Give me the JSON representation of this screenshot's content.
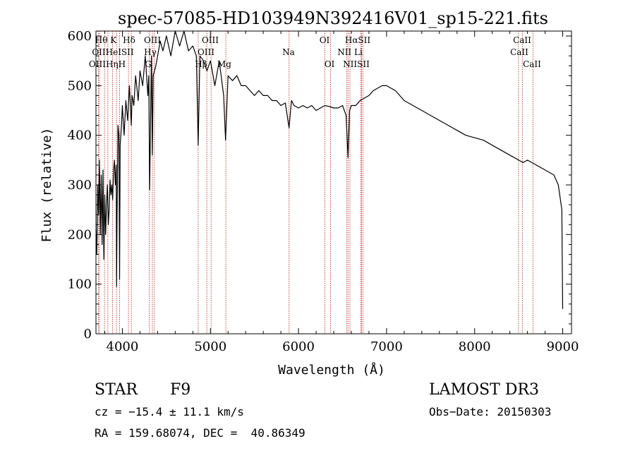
{
  "chart_data": {
    "type": "line",
    "title": "spec-57085-HD103949N392416V01_sp15-221.fits",
    "xlabel": "Wavelength (Å)",
    "ylabel": "Flux (relative)",
    "xlim": [
      3700,
      9100
    ],
    "ylim": [
      0,
      610
    ],
    "xticks": [
      4000,
      5000,
      6000,
      7000,
      8000,
      9000
    ],
    "yticks": [
      0,
      100,
      200,
      300,
      400,
      500,
      600
    ],
    "x_tick_labels": [
      "4000",
      "5000",
      "6000",
      "7000",
      "8000",
      "9000"
    ],
    "y_tick_labels": [
      "0",
      "100",
      "200",
      "300",
      "400",
      "500",
      "600"
    ],
    "series": [
      {
        "name": "spectrum",
        "x": [
          3700,
          3710,
          3720,
          3730,
          3740,
          3750,
          3760,
          3770,
          3780,
          3790,
          3800,
          3810,
          3820,
          3830,
          3840,
          3850,
          3860,
          3870,
          3880,
          3890,
          3900,
          3910,
          3920,
          3930,
          3934,
          3940,
          3950,
          3960,
          3968,
          3975,
          3990,
          4000,
          4020,
          4040,
          4060,
          4080,
          4101,
          4110,
          4130,
          4150,
          4180,
          4200,
          4230,
          4260,
          4290,
          4300,
          4310,
          4330,
          4340,
          4350,
          4380,
          4400,
          4430,
          4460,
          4500,
          4550,
          4600,
          4650,
          4700,
          4750,
          4800,
          4840,
          4861,
          4880,
          4920,
          4960,
          5000,
          5050,
          5100,
          5150,
          5172,
          5200,
          5250,
          5300,
          5350,
          5400,
          5450,
          5500,
          5550,
          5600,
          5650,
          5700,
          5750,
          5800,
          5850,
          5893,
          5920,
          5950,
          6000,
          6050,
          6100,
          6150,
          6200,
          6250,
          6300,
          6350,
          6400,
          6450,
          6500,
          6540,
          6563,
          6580,
          6600,
          6650,
          6700,
          6750,
          6800,
          6850,
          6900,
          6950,
          7000,
          7050,
          7100,
          7150,
          7200,
          7300,
          7400,
          7500,
          7600,
          7700,
          7800,
          7900,
          8000,
          8100,
          8200,
          8300,
          8400,
          8500,
          8550,
          8600,
          8700,
          8800,
          8900,
          8950,
          8990,
          9000
        ],
        "y": [
          210,
          160,
          300,
          240,
          350,
          200,
          320,
          180,
          330,
          150,
          280,
          200,
          260,
          300,
          220,
          250,
          310,
          280,
          300,
          270,
          330,
          350,
          300,
          340,
          95,
          250,
          420,
          400,
          110,
          380,
          420,
          460,
          400,
          470,
          430,
          500,
          420,
          480,
          460,
          520,
          470,
          530,
          500,
          560,
          480,
          520,
          290,
          560,
          360,
          520,
          540,
          560,
          590,
          570,
          600,
          560,
          620,
          580,
          610,
          570,
          580,
          560,
          380,
          560,
          550,
          530,
          550,
          500,
          550,
          480,
          390,
          520,
          510,
          520,
          500,
          500,
          490,
          480,
          490,
          480,
          480,
          470,
          470,
          460,
          465,
          415,
          470,
          460,
          455,
          460,
          455,
          460,
          450,
          455,
          460,
          458,
          455,
          455,
          460,
          440,
          355,
          450,
          460,
          460,
          470,
          475,
          480,
          490,
          495,
          500,
          500,
          495,
          490,
          480,
          470,
          460,
          450,
          440,
          430,
          420,
          410,
          400,
          395,
          390,
          380,
          370,
          360,
          350,
          345,
          350,
          340,
          330,
          320,
          300,
          250,
          50
        ]
      }
    ],
    "lines": [
      {
        "label": "Hθ",
        "x": 3797
      },
      {
        "label": "OII",
        "x": 3727
      },
      {
        "label": "OIII",
        "x": 3740
      },
      {
        "label": "Hη",
        "x": 3835
      },
      {
        "label": "HeI",
        "x": 3889
      },
      {
        "label": "K",
        "x": 3934
      },
      {
        "label": "H",
        "x": 3968
      },
      {
        "label": "SII",
        "x": 4069
      },
      {
        "label": "Hδ",
        "x": 4102
      },
      {
        "label": "OIII",
        "x": 4363
      },
      {
        "label": "Hγ",
        "x": 4341
      },
      {
        "label": "G",
        "x": 4305
      },
      {
        "label": "Hβ",
        "x": 4861
      },
      {
        "label": "OIII",
        "x": 4959
      },
      {
        "label": "OIII",
        "x": 5007
      },
      {
        "label": "Mg",
        "x": 5175
      },
      {
        "label": "Na",
        "x": 5893
      },
      {
        "label": "OI",
        "x": 6300
      },
      {
        "label": "OI",
        "x": 6364
      },
      {
        "label": "Hα",
        "x": 6563
      },
      {
        "label": "NII",
        "x": 6548
      },
      {
        "label": "NII",
        "x": 6584
      },
      {
        "label": "SII",
        "x": 6717
      },
      {
        "label": "SII",
        "x": 6731
      },
      {
        "label": "Li",
        "x": 6707
      },
      {
        "label": "CaII",
        "x": 8498
      },
      {
        "label": "CaII",
        "x": 8542
      },
      {
        "label": "CaII",
        "x": 8662
      }
    ],
    "line_label_text": [
      {
        "t": "Hθ K",
        "row": 0
      },
      {
        "t": "Hδ",
        "row": 0
      },
      {
        "t": "OIII",
        "row": 0
      },
      {
        "t": "OIII",
        "row": 0
      },
      {
        "t": "OI",
        "row": 0
      },
      {
        "t": "HαSII",
        "row": 0
      },
      {
        "t": "CaII",
        "row": 0
      },
      {
        "t": "OIIHeISII",
        "row": 1
      },
      {
        "t": "Hγ",
        "row": 1
      },
      {
        "t": "OIII",
        "row": 1
      },
      {
        "t": "Na",
        "row": 1
      },
      {
        "t": "NII Li",
        "row": 1
      },
      {
        "t": "CaII",
        "row": 1
      },
      {
        "t": "OIIIHηH",
        "row": 2
      },
      {
        "t": "G",
        "row": 2
      },
      {
        "t": "Hβ",
        "row": 2
      },
      {
        "t": "Mg",
        "row": 2
      },
      {
        "t": "OI",
        "row": 2
      },
      {
        "t": "NIISII",
        "row": 2
      },
      {
        "t": "CaII",
        "row": 2
      }
    ]
  },
  "info": {
    "object_class": "STAR",
    "subclass": "F9",
    "survey": "LAMOST DR3",
    "redshift": "cz = −15.4 ± 11.1 km/s",
    "obs_date": "Obs−Date: 20150303",
    "coords": "RA = 159.68074, DEC =  40.86349"
  }
}
